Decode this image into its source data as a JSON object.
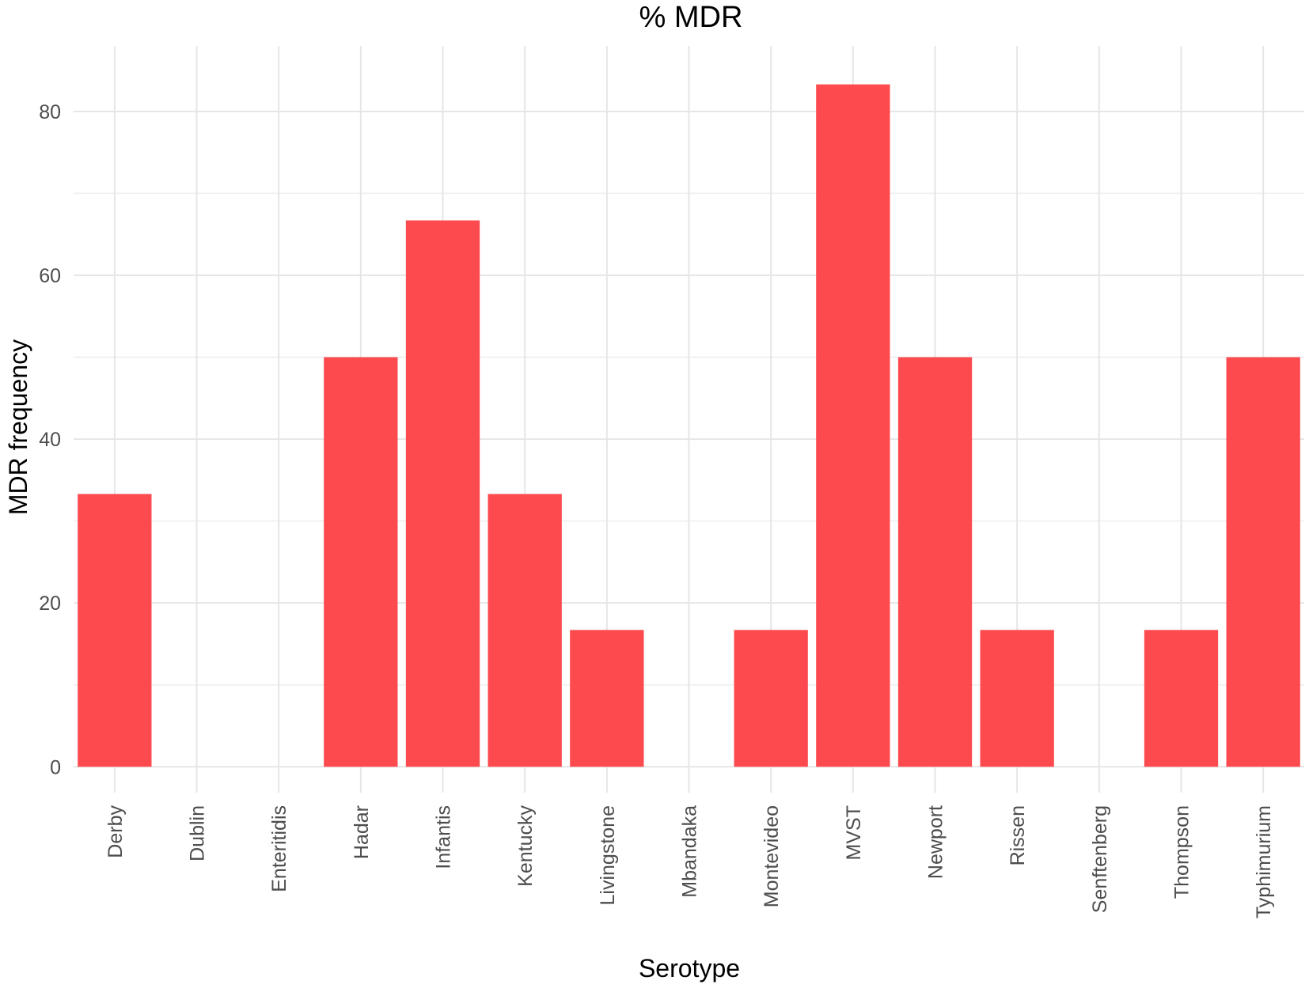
{
  "chart_data": {
    "type": "bar",
    "title": "% MDR",
    "xlabel": "Serotype",
    "ylabel": "MDR frequency",
    "categories": [
      "Derby",
      "Dublin",
      "Enteritidis",
      "Hadar",
      "Infantis",
      "Kentucky",
      "Livingstone",
      "Mbandaka",
      "Montevideo",
      "MVST",
      "Newport",
      "Rissen",
      "Senftenberg",
      "Thompson",
      "Typhimurium"
    ],
    "values": [
      33.3,
      0,
      0,
      50,
      66.7,
      33.3,
      16.7,
      0,
      16.7,
      83.3,
      50,
      16.7,
      0,
      16.7,
      50
    ],
    "ylim": [
      -2,
      88
    ],
    "yticks": [
      0,
      20,
      40,
      60,
      80
    ],
    "yminor": [
      10,
      30,
      50,
      70
    ],
    "grid": true,
    "legend": "none",
    "bar_color": "#fc4a4e",
    "tick_label_rotation": -90
  }
}
